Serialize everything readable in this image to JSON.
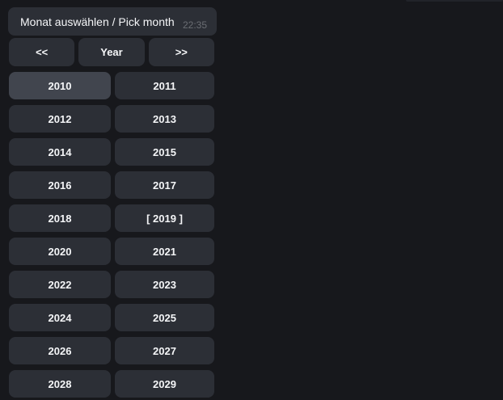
{
  "message": {
    "text": "Monat auswählen / Pick month",
    "time": "22:35"
  },
  "nav": {
    "prev": "<<",
    "title": "Year",
    "next": ">>"
  },
  "years": [
    {
      "label": "2010",
      "state": "hover"
    },
    {
      "label": "2011",
      "state": "normal"
    },
    {
      "label": "2012",
      "state": "normal"
    },
    {
      "label": "2013",
      "state": "normal"
    },
    {
      "label": "2014",
      "state": "normal"
    },
    {
      "label": "2015",
      "state": "normal"
    },
    {
      "label": "2016",
      "state": "normal"
    },
    {
      "label": "2017",
      "state": "normal"
    },
    {
      "label": "2018",
      "state": "normal"
    },
    {
      "label": "[ 2019 ]",
      "state": "selected"
    },
    {
      "label": "2020",
      "state": "normal"
    },
    {
      "label": "2021",
      "state": "normal"
    },
    {
      "label": "2022",
      "state": "normal"
    },
    {
      "label": "2023",
      "state": "normal"
    },
    {
      "label": "2024",
      "state": "normal"
    },
    {
      "label": "2025",
      "state": "normal"
    },
    {
      "label": "2026",
      "state": "normal"
    },
    {
      "label": "2027",
      "state": "normal"
    },
    {
      "label": "2028",
      "state": "normal"
    },
    {
      "label": "2029",
      "state": "normal"
    }
  ],
  "colors": {
    "background": "#17181c",
    "button": "#2c2f36",
    "button_hover": "#41454e",
    "text": "#f5f6f8",
    "timestamp": "#6a6d73",
    "sliver": "#212329"
  }
}
